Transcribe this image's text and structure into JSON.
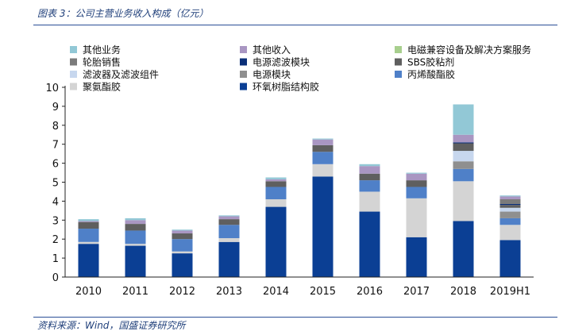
{
  "figure_title": "图表 3：公司主营业务收入构成（亿元）",
  "source": "资料来源：Wind，国盛证券研究所",
  "chart_data": {
    "type": "bar",
    "stacked": true,
    "categories": [
      "2010",
      "2011",
      "2012",
      "2013",
      "2014",
      "2015",
      "2016",
      "2017",
      "2018",
      "2019H1"
    ],
    "ylim": [
      0,
      10
    ],
    "yticks": [
      "0",
      "1",
      "2",
      "3",
      "4",
      "5",
      "6",
      "7",
      "8",
      "9",
      "10"
    ],
    "grid": false,
    "legend_position": "top",
    "series": [
      {
        "name": "环氧树脂结构胶",
        "color": "#0b3f94",
        "values": [
          1.75,
          1.65,
          1.25,
          1.85,
          3.7,
          5.3,
          3.45,
          2.1,
          2.95,
          1.95
        ]
      },
      {
        "name": "聚氨酯胶",
        "color": "#d4d4d4",
        "values": [
          0.1,
          0.1,
          0.1,
          0.2,
          0.4,
          0.65,
          1.05,
          2.05,
          2.1,
          0.8
        ]
      },
      {
        "name": "丙烯酸酯胶",
        "color": "#4f80c8",
        "values": [
          0.7,
          0.7,
          0.65,
          0.7,
          0.65,
          0.65,
          0.6,
          0.6,
          0.65,
          0.35
        ]
      },
      {
        "name": "电源模块",
        "color": "#8f8f8f",
        "values": [
          0,
          0,
          0,
          0,
          0,
          0,
          0,
          0,
          0.4,
          0.35
        ]
      },
      {
        "name": "滤波器及滤波组件",
        "color": "#c7d7ee",
        "values": [
          0,
          0,
          0,
          0,
          0,
          0,
          0,
          0,
          0.55,
          0.2
        ]
      },
      {
        "name": "SBS胶粘剂",
        "color": "#5f5f5f",
        "values": [
          0.35,
          0.35,
          0.3,
          0.3,
          0.3,
          0.35,
          0.35,
          0.35,
          0.4,
          0.15
        ]
      },
      {
        "name": "电源滤波模块",
        "color": "#0a2f78",
        "values": [
          0,
          0,
          0,
          0,
          0,
          0,
          0,
          0,
          0.05,
          0.05
        ]
      },
      {
        "name": "轮胎销售",
        "color": "#7b7b7b",
        "values": [
          0,
          0,
          0,
          0,
          0,
          0,
          0,
          0,
          0,
          0.25
        ]
      },
      {
        "name": "电磁兼容设备及解决方案服务",
        "color": "#a8cf8e",
        "values": [
          0,
          0,
          0,
          0,
          0,
          0,
          0,
          0,
          0,
          0
        ]
      },
      {
        "name": "其他收入",
        "color": "#a996c2",
        "values": [
          0.05,
          0.2,
          0.15,
          0.15,
          0.1,
          0.3,
          0.4,
          0.35,
          0.4,
          0.15
        ]
      },
      {
        "name": "其他业务",
        "color": "#92c8d6",
        "values": [
          0.1,
          0.1,
          0.05,
          0.05,
          0.1,
          0.05,
          0.1,
          0.05,
          1.6,
          0.05
        ]
      }
    ],
    "legend_order": [
      "其他业务",
      "其他收入",
      "电磁兼容设备及解决方案服务",
      "轮胎销售",
      "电源滤波模块",
      "SBS胶粘剂",
      "滤波器及滤波组件",
      "电源模块",
      "丙烯酸酯胶",
      "聚氨酯胶",
      "环氧树脂结构胶"
    ]
  }
}
